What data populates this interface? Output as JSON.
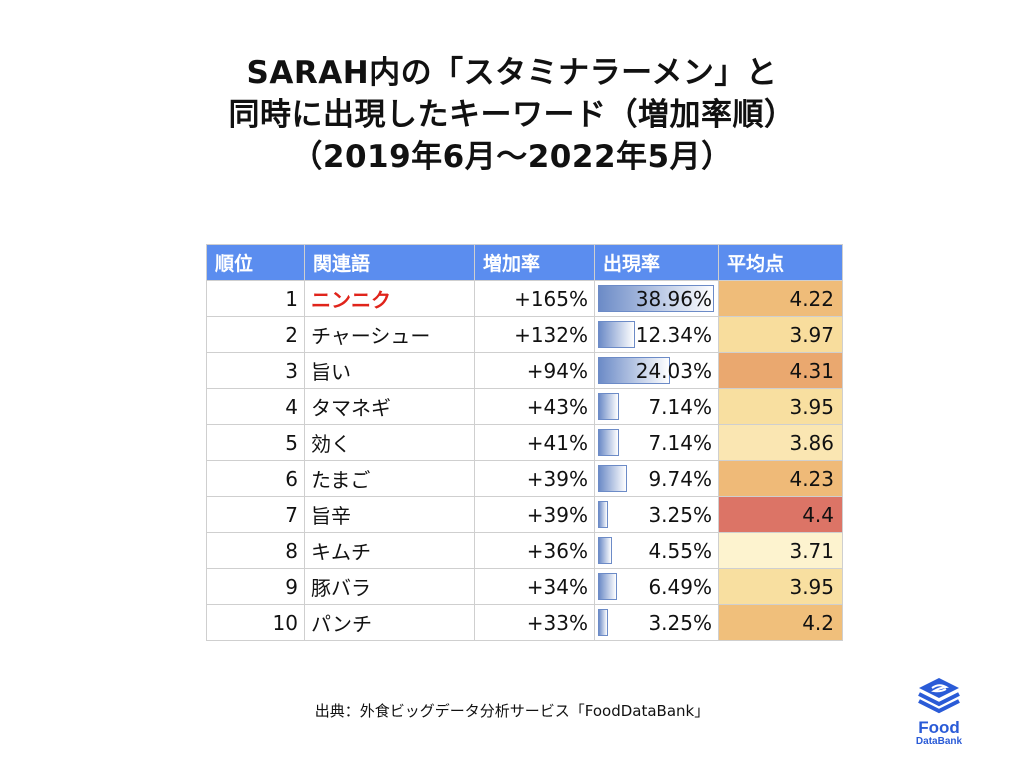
{
  "title_lines": [
    "SARAH内の「スタミナラーメン」と",
    "同時に出現したキーワード（増加率順）",
    "（2019年6月～2022年5月）"
  ],
  "chart_data": {
    "type": "table",
    "columns": [
      "順位",
      "関連語",
      "増加率",
      "出現率",
      "平均点"
    ],
    "rows": [
      {
        "rank": "1",
        "keyword": "ニンニク",
        "growth": "+165%",
        "appearance": "38.96%",
        "appearance_value": 38.96,
        "avg": "4.22",
        "avg_value": 4.22,
        "highlight": true
      },
      {
        "rank": "2",
        "keyword": "チャーシュー",
        "growth": "+132%",
        "appearance": "12.34%",
        "appearance_value": 12.34,
        "avg": "3.97",
        "avg_value": 3.97
      },
      {
        "rank": "3",
        "keyword": "旨い",
        "growth": "+94%",
        "appearance": "24.03%",
        "appearance_value": 24.03,
        "avg": "4.31",
        "avg_value": 4.31
      },
      {
        "rank": "4",
        "keyword": "タマネギ",
        "growth": "+43%",
        "appearance": "7.14%",
        "appearance_value": 7.14,
        "avg": "3.95",
        "avg_value": 3.95
      },
      {
        "rank": "5",
        "keyword": "効く",
        "growth": "+41%",
        "appearance": "7.14%",
        "appearance_value": 7.14,
        "avg": "3.86",
        "avg_value": 3.86
      },
      {
        "rank": "6",
        "keyword": "たまご",
        "growth": "+39%",
        "appearance": "9.74%",
        "appearance_value": 9.74,
        "avg": "4.23",
        "avg_value": 4.23
      },
      {
        "rank": "7",
        "keyword": "旨辛",
        "growth": "+39%",
        "appearance": "3.25%",
        "appearance_value": 3.25,
        "avg": "4.4",
        "avg_value": 4.4
      },
      {
        "rank": "8",
        "keyword": "キムチ",
        "growth": "+36%",
        "appearance": "4.55%",
        "appearance_value": 4.55,
        "avg": "3.71",
        "avg_value": 3.71
      },
      {
        "rank": "9",
        "keyword": "豚バラ",
        "growth": "+34%",
        "appearance": "6.49%",
        "appearance_value": 6.49,
        "avg": "3.95",
        "avg_value": 3.95
      },
      {
        "rank": "10",
        "keyword": "パンチ",
        "growth": "+33%",
        "appearance": "3.25%",
        "appearance_value": 3.25,
        "avg": "4.2",
        "avg_value": 4.2
      }
    ],
    "appearance_bar_max": 38.96,
    "colors": {
      "header_bg": "#5b8def",
      "highlight_text": "#e0241b",
      "bar": "#6c8bc7",
      "avg_low": "#fdf3cf",
      "avg_high": "#dc7466"
    }
  },
  "source": "出典：外食ビッグデータ分析サービス「FoodDataBank」",
  "logo": {
    "line1": "Food",
    "line2": "DataBank",
    "color": "#2a5bd7"
  }
}
